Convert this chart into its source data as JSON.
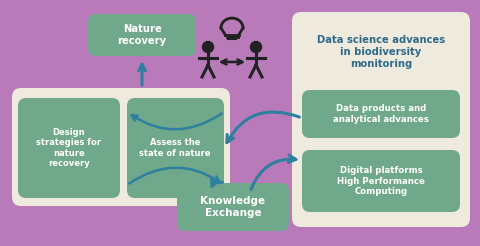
{
  "bg_color": "#b87ab8",
  "left_panel_bg": "#eeeade",
  "right_panel_bg": "#eeeade",
  "green_box_color": "#6fa88a",
  "teal_arrow_color": "#2e7fa0",
  "dark_text": "#2e6a8a",
  "white_text": "#ffffff",
  "icon_color": "#222222",
  "nature_recovery_text": "Nature\nrecovery",
  "design_text": "Design\nstrategies for\nnature\nrecovery",
  "assess_text": "Assess the\nstate of nature",
  "knowledge_text": "Knowledge\nExchange",
  "data_science_title": "Data science advances\nin biodiversity\nmonitoring",
  "data_products_text": "Data products and\nanalytical advances",
  "digital_platforms_text": "Digital platforms\nHigh Performance\nComputing",
  "fig_w": 4.8,
  "fig_h": 2.46,
  "dpi": 100
}
